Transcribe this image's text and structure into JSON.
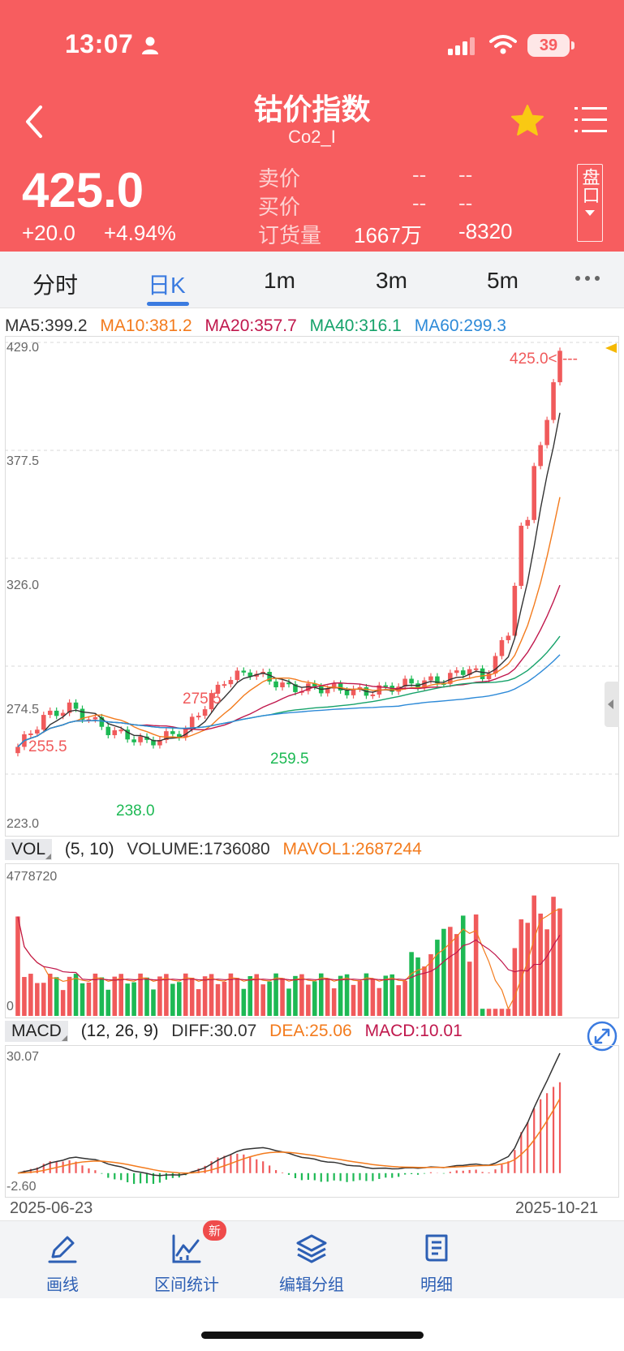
{
  "status_bar": {
    "time": "13:07",
    "battery": "39"
  },
  "header": {
    "title": "钴价指数",
    "code": "Co2_I",
    "price": "425.0",
    "change": "+20.0",
    "change_pct": "+4.94%",
    "orderbook": {
      "ask_label": "卖价",
      "ask_v1": "--",
      "ask_v2": "--",
      "bid_label": "买价",
      "bid_v1": "--",
      "bid_v2": "--",
      "oi_label": "订货量",
      "oi_value": "1667万",
      "oi_change": "-8320"
    },
    "pankou_label": "盘口"
  },
  "tabs": [
    {
      "label": "分时"
    },
    {
      "label": "日K"
    },
    {
      "label": "1m"
    },
    {
      "label": "3m"
    },
    {
      "label": "5m"
    }
  ],
  "active_tab": "日K",
  "ma_legend": [
    {
      "label": "MA5:399.2",
      "color": "#333333"
    },
    {
      "label": "MA10:381.2",
      "color": "#f37b1d"
    },
    {
      "label": "MA20:357.7",
      "color": "#c0174c"
    },
    {
      "label": "MA40:316.1",
      "color": "#15a26a"
    },
    {
      "label": "MA60:299.3",
      "color": "#2d8ad8"
    }
  ],
  "kline": {
    "y_ticks": [
      "429.0",
      "377.5",
      "326.0",
      "274.5",
      "223.0"
    ],
    "last_price_label": "425.0<----",
    "high_labels": [
      "255.5",
      "275.5"
    ],
    "low_labels": [
      "238.0",
      "259.5"
    ],
    "up_color": "#f05a5b",
    "down_color": "#1db954"
  },
  "vol": {
    "tag": "VOL",
    "params": "(5, 10)",
    "volume": "VOLUME:1736080",
    "mavol": "MAVOL1:2687244",
    "y_top": "4778720",
    "y_bottom": "0"
  },
  "macd": {
    "tag": "MACD",
    "params": "(12, 26, 9)",
    "diff": "DIFF:30.07",
    "dea": "DEA:25.06",
    "macd": "MACD:10.01",
    "y_top": "30.07",
    "y_bottom": "-2.60"
  },
  "dates": {
    "start": "2025-06-23",
    "end": "2025-10-21"
  },
  "bottom_nav": [
    {
      "label": "画线",
      "icon": "pencil-icon"
    },
    {
      "label": "区间统计",
      "icon": "stats-chart-icon",
      "badge": "新"
    },
    {
      "label": "编辑分组",
      "icon": "layers-icon"
    },
    {
      "label": "明细",
      "icon": "document-icon"
    }
  ]
}
